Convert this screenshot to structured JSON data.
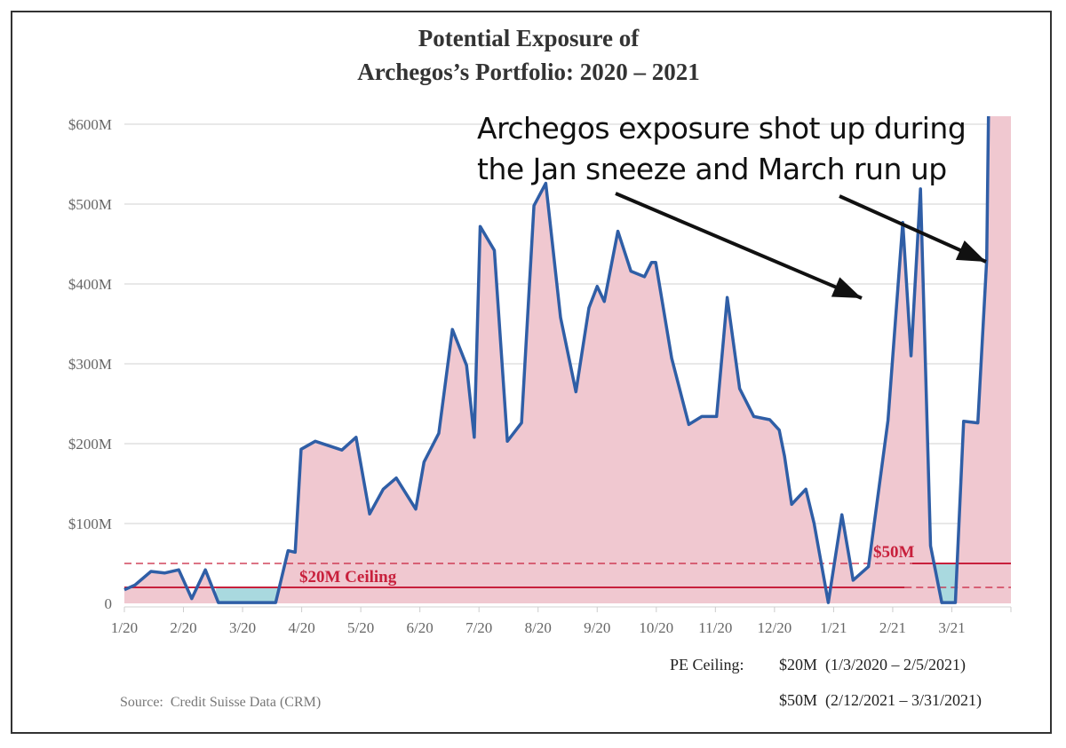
{
  "chart_data": {
    "type": "area",
    "title_line1": "Potential Exposure of",
    "title_line2": "Archegos’s Portfolio: 2020 – 2021",
    "xlabel": "",
    "ylabel": "",
    "x_units": "months since 1/2020",
    "xlim": [
      0,
      15
    ],
    "ylim": [
      0,
      610
    ],
    "y_ticks": [
      {
        "v": 0,
        "label": "0"
      },
      {
        "v": 100,
        "label": "$100M"
      },
      {
        "v": 200,
        "label": "$200M"
      },
      {
        "v": 300,
        "label": "$300M"
      },
      {
        "v": 400,
        "label": "$400M"
      },
      {
        "v": 500,
        "label": "$500M"
      },
      {
        "v": 600,
        "label": "$600M"
      }
    ],
    "x_ticks": [
      {
        "v": 0,
        "label": "1/20"
      },
      {
        "v": 1,
        "label": "2/20"
      },
      {
        "v": 2,
        "label": "3/20"
      },
      {
        "v": 3,
        "label": "4/20"
      },
      {
        "v": 4,
        "label": "5/20"
      },
      {
        "v": 5,
        "label": "6/20"
      },
      {
        "v": 6,
        "label": "7/20"
      },
      {
        "v": 7,
        "label": "8/20"
      },
      {
        "v": 8,
        "label": "9/20"
      },
      {
        "v": 9,
        "label": "10/20"
      },
      {
        "v": 10,
        "label": "11/20"
      },
      {
        "v": 11,
        "label": "12/20"
      },
      {
        "v": 12,
        "label": "1/21"
      },
      {
        "v": 13,
        "label": "2/21"
      },
      {
        "v": 14,
        "label": "3/21"
      }
    ],
    "grid": true,
    "series": [
      {
        "name": "Potential Exposure ($M)",
        "x": [
          0,
          0.18,
          0.45,
          0.68,
          0.92,
          1.14,
          1.37,
          1.59,
          2.56,
          2.77,
          2.89,
          2.99,
          3.23,
          3.68,
          3.92,
          4.15,
          4.38,
          4.6,
          4.93,
          5.07,
          5.32,
          5.55,
          5.79,
          5.92,
          6.02,
          6.26,
          6.48,
          6.72,
          6.93,
          7.13,
          7.38,
          7.64,
          7.86,
          8.0,
          8.12,
          8.35,
          8.57,
          8.8,
          8.92,
          8.99,
          9.26,
          9.55,
          9.77,
          10.02,
          10.2,
          10.41,
          10.65,
          10.92,
          11.08,
          11.17,
          11.29,
          11.53,
          11.67,
          11.91,
          12.14,
          12.33,
          12.59,
          12.92,
          13.17,
          13.31,
          13.47,
          13.64,
          13.83,
          14.06,
          14.2,
          14.44,
          14.59,
          14.62
        ],
        "y": [
          17,
          23,
          40,
          38,
          42,
          6,
          42,
          1,
          1,
          66,
          64,
          193,
          203,
          192,
          208,
          112,
          143,
          157,
          118,
          177,
          213,
          343,
          298,
          208,
          472,
          442,
          203,
          226,
          498,
          526,
          358,
          265,
          370,
          397,
          378,
          466,
          416,
          409,
          427,
          427,
          307,
          224,
          234,
          234,
          383,
          269,
          234,
          230,
          217,
          184,
          124,
          143,
          100,
          1,
          111,
          29,
          46,
          229,
          477,
          310,
          519,
          72,
          1,
          1,
          228,
          226,
          430,
          610
        ]
      }
    ],
    "ceilings": [
      {
        "value": 20,
        "from": 0,
        "to": 13.2,
        "style": "solid"
      },
      {
        "value": 50,
        "from": 13.33,
        "to": 15,
        "style": "solid"
      },
      {
        "value": 50,
        "from": 0,
        "to": 13.33,
        "style": "dashed"
      },
      {
        "value": 20,
        "from": 13.2,
        "to": 15,
        "style": "dashed"
      }
    ],
    "below_ceiling_ranges": [
      {
        "from": 1.55,
        "to": 2.8,
        "ceiling": 20
      },
      {
        "from": 13.6,
        "to": 14.18,
        "ceiling": 50
      }
    ],
    "labels": {
      "ceiling20": "$20M Ceiling",
      "ceiling50": "$50M"
    },
    "annotation": {
      "line1": "Archegos exposure shot up during",
      "line2": "the Jan sneeze and March run up"
    },
    "colors": {
      "line": "#2f5ea6",
      "fill_above": "#f0c8d0",
      "fill_below": "#a9d9df",
      "ceiling": "#c8203c",
      "grid": "#e0e0e0",
      "axis_text": "#666666"
    }
  },
  "footer": {
    "pe_label": "PE Ceiling:",
    "pe_20": "$20M  (1/3/2020 – 2/5/2021)",
    "pe_50": "$50M  (2/12/2021 – 3/31/2021)",
    "source": "Source:  Credit Suisse Data (CRM)"
  }
}
